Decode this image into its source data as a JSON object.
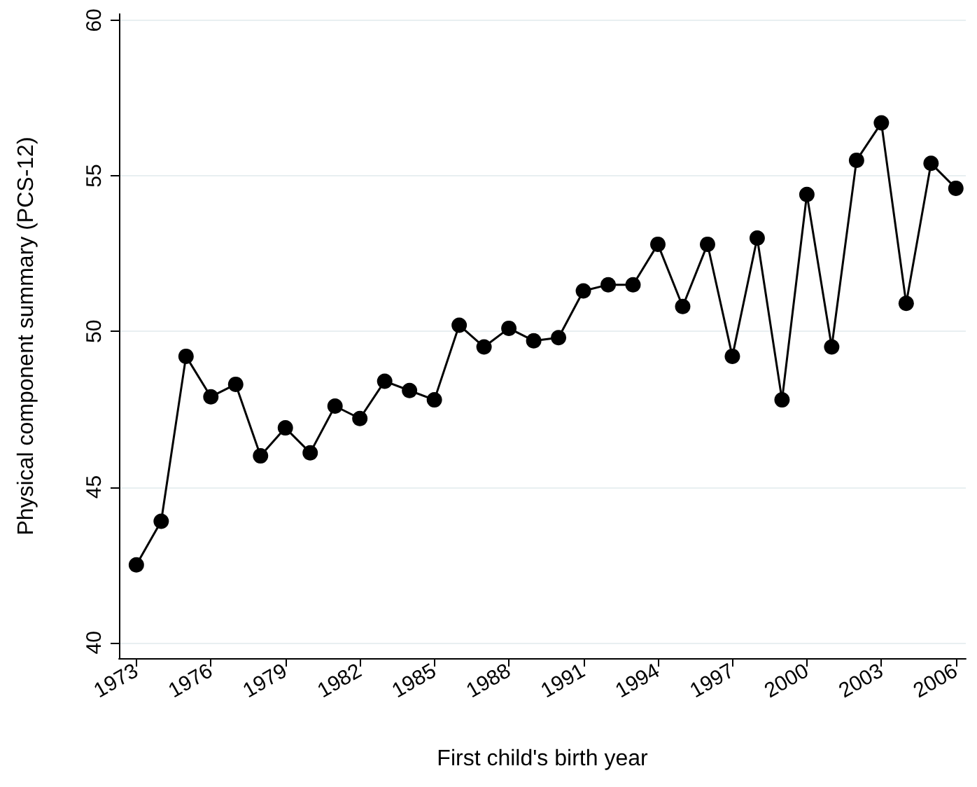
{
  "chart_data": {
    "type": "line",
    "xlabel": "First child's birth year",
    "ylabel": "Physical component summary (PCS-12)",
    "x": [
      1973,
      1974,
      1975,
      1976,
      1977,
      1978,
      1979,
      1980,
      1981,
      1982,
      1983,
      1984,
      1985,
      1986,
      1987,
      1988,
      1989,
      1990,
      1991,
      1992,
      1993,
      1994,
      1995,
      1996,
      1997,
      1998,
      1999,
      2000,
      2001,
      2002,
      2003,
      2004,
      2005,
      2006
    ],
    "series": [
      {
        "color": "#000000",
        "values": [
          42.5,
          43.9,
          49.2,
          47.9,
          48.3,
          46.0,
          46.9,
          46.1,
          47.6,
          47.2,
          48.4,
          48.1,
          47.8,
          50.2,
          49.5,
          50.1,
          49.7,
          49.8,
          51.3,
          51.5,
          51.5,
          52.8,
          50.8,
          52.8,
          49.2,
          53.0,
          47.8,
          54.4,
          49.5,
          55.5,
          56.7,
          50.9,
          55.4,
          54.6
        ]
      }
    ],
    "xlim": [
      1972.3,
      2006.4
    ],
    "xticks": [
      1973,
      1976,
      1979,
      1982,
      1985,
      1988,
      1991,
      1994,
      1997,
      2000,
      2003,
      2006
    ],
    "ylim": [
      39.5,
      60.2
    ],
    "yticks": [
      40,
      45,
      50,
      55,
      60
    ],
    "grid": "y",
    "marker": "circle",
    "line_style": "solid"
  }
}
